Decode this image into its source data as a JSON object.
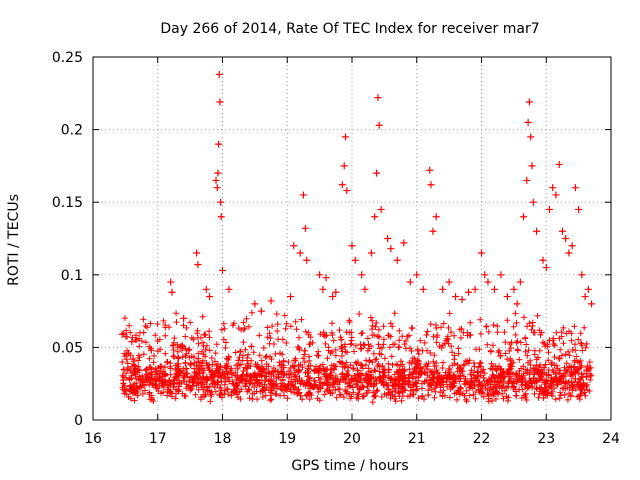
{
  "chart_data": {
    "type": "scatter",
    "title": "Day 266 of 2014, Rate Of TEC Index for receiver mar7",
    "xlabel": "GPS time / hours",
    "ylabel": "ROTI / TECUs",
    "xlim": [
      16,
      24
    ],
    "ylim": [
      0,
      0.25
    ],
    "x_ticks": [
      "16",
      "17",
      "18",
      "19",
      "20",
      "21",
      "22",
      "23",
      "24"
    ],
    "y_ticks": [
      "0",
      "0.05",
      "0.1",
      "0.15",
      "0.2",
      "0.25"
    ],
    "grid": true,
    "marker": "+",
    "color": "#ff0000",
    "series": [
      {
        "name": "ROTI",
        "x": [
          16.45,
          16.55,
          16.6,
          16.62,
          16.9,
          17.2,
          17.22,
          17.4,
          17.6,
          17.62,
          17.75,
          17.8,
          17.9,
          17.92,
          17.93,
          17.94,
          17.95,
          17.96,
          17.97,
          17.98,
          18.0,
          18.1,
          18.5,
          18.6,
          18.75,
          19.05,
          19.1,
          19.2,
          19.25,
          19.28,
          19.3,
          19.5,
          19.55,
          19.6,
          19.7,
          19.75,
          19.85,
          19.88,
          19.9,
          19.92,
          20.0,
          20.05,
          20.15,
          20.2,
          20.3,
          20.35,
          20.38,
          20.4,
          20.42,
          20.45,
          20.55,
          20.6,
          20.7,
          20.8,
          20.9,
          21.0,
          21.1,
          21.2,
          21.22,
          21.25,
          21.3,
          21.4,
          21.5,
          21.6,
          21.7,
          21.8,
          21.9,
          22.0,
          22.05,
          22.1,
          22.2,
          22.3,
          22.4,
          22.5,
          22.55,
          22.6,
          22.65,
          22.7,
          22.72,
          22.74,
          22.76,
          22.78,
          22.8,
          22.85,
          22.95,
          23.0,
          23.05,
          23.1,
          23.15,
          23.2,
          23.25,
          23.3,
          23.35,
          23.4,
          23.45,
          23.5,
          23.55,
          23.6,
          23.65,
          23.7
        ],
        "y": [
          0.059,
          0.046,
          0.054,
          0.042,
          0.048,
          0.095,
          0.088,
          0.07,
          0.115,
          0.107,
          0.09,
          0.085,
          0.165,
          0.16,
          0.17,
          0.19,
          0.238,
          0.219,
          0.15,
          0.14,
          0.103,
          0.09,
          0.08,
          0.075,
          0.082,
          0.085,
          0.12,
          0.115,
          0.155,
          0.132,
          0.11,
          0.1,
          0.09,
          0.098,
          0.085,
          0.088,
          0.162,
          0.175,
          0.195,
          0.158,
          0.12,
          0.11,
          0.1,
          0.09,
          0.115,
          0.14,
          0.17,
          0.222,
          0.203,
          0.145,
          0.125,
          0.118,
          0.11,
          0.122,
          0.095,
          0.1,
          0.09,
          0.172,
          0.162,
          0.13,
          0.14,
          0.09,
          0.095,
          0.085,
          0.083,
          0.088,
          0.09,
          0.115,
          0.1,
          0.095,
          0.09,
          0.1,
          0.085,
          0.09,
          0.08,
          0.095,
          0.14,
          0.165,
          0.205,
          0.219,
          0.195,
          0.175,
          0.15,
          0.13,
          0.11,
          0.105,
          0.145,
          0.16,
          0.155,
          0.176,
          0.13,
          0.125,
          0.115,
          0.12,
          0.16,
          0.145,
          0.1,
          0.085,
          0.09,
          0.08
        ]
      }
    ]
  }
}
